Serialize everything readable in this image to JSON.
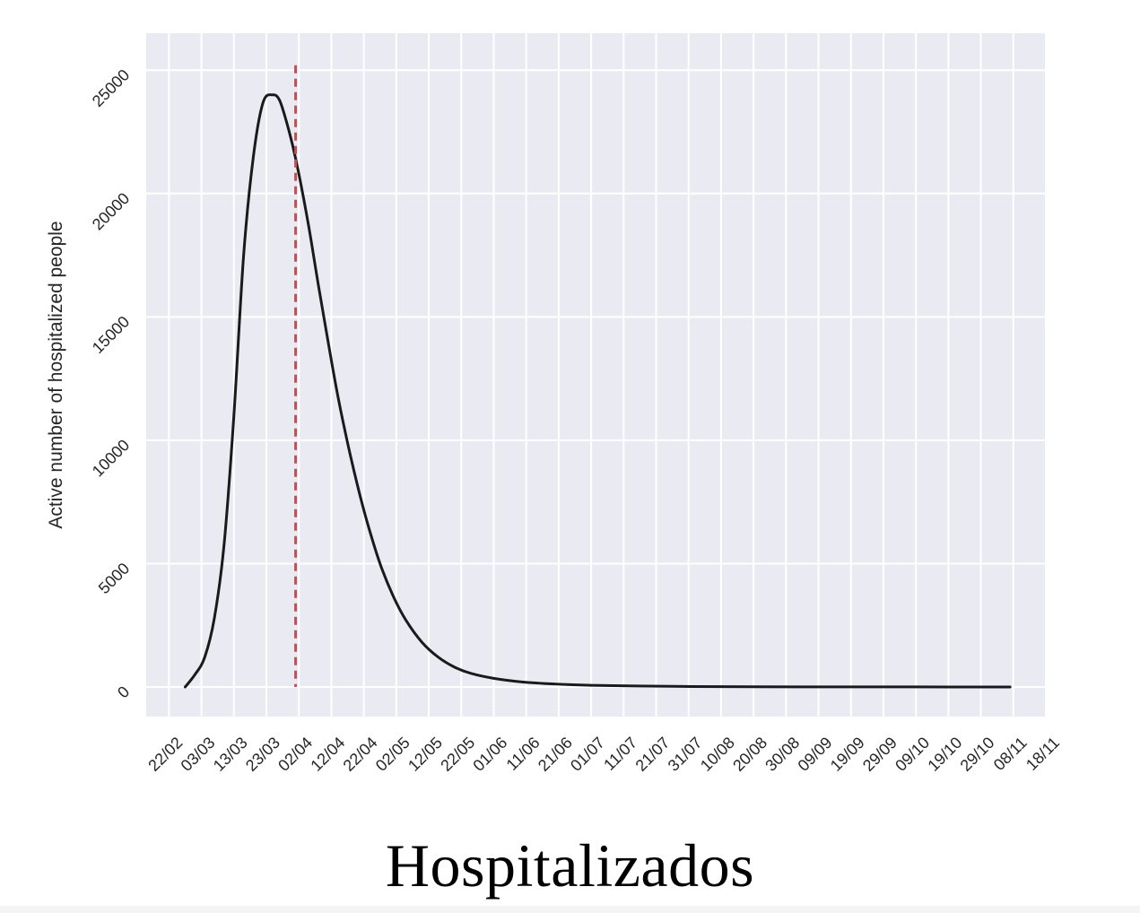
{
  "caption": "Hospitalizados",
  "chart_data": {
    "type": "line",
    "title": "",
    "xlabel": "",
    "ylabel": "Active number of hospitalized people",
    "x_ticks": [
      "22/02",
      "03/03",
      "13/03",
      "23/03",
      "02/04",
      "12/04",
      "22/04",
      "02/05",
      "12/05",
      "22/05",
      "01/06",
      "11/06",
      "21/06",
      "01/07",
      "11/07",
      "21/07",
      "31/07",
      "10/08",
      "20/08",
      "30/08",
      "09/09",
      "19/09",
      "29/09",
      "09/10",
      "19/10",
      "29/10",
      "08/11",
      "18/11"
    ],
    "y_ticks": [
      0,
      5000,
      10000,
      15000,
      20000,
      25000
    ],
    "xlim": [
      "2020-02-15",
      "2020-11-18"
    ],
    "ylim": [
      -1200,
      26500
    ],
    "grid": true,
    "background": "#eaeaf2",
    "grid_color": "#ffffff",
    "series": [
      {
        "color": "#1a1a1a",
        "x": [
          "2020-02-27",
          "2020-03-01",
          "2020-03-04",
          "2020-03-07",
          "2020-03-10",
          "2020-03-13",
          "2020-03-16",
          "2020-03-19",
          "2020-03-22",
          "2020-03-25",
          "2020-03-27",
          "2020-03-29",
          "2020-03-31",
          "2020-04-02",
          "2020-04-05",
          "2020-04-08",
          "2020-04-11",
          "2020-04-14",
          "2020-04-17",
          "2020-04-20",
          "2020-04-23",
          "2020-04-27",
          "2020-05-01",
          "2020-05-05",
          "2020-05-10",
          "2020-05-15",
          "2020-05-20",
          "2020-05-25",
          "2020-06-01",
          "2020-06-10",
          "2020-06-20",
          "2020-07-01",
          "2020-07-15",
          "2020-08-01",
          "2020-08-20",
          "2020-09-10",
          "2020-10-01",
          "2020-10-20",
          "2020-11-07"
        ],
        "y": [
          0,
          500,
          1200,
          2800,
          5800,
          11000,
          17500,
          21500,
          23700,
          24000,
          23800,
          23000,
          22000,
          20800,
          18700,
          16300,
          14000,
          11800,
          9900,
          8200,
          6700,
          5000,
          3700,
          2700,
          1800,
          1200,
          800,
          550,
          350,
          200,
          120,
          70,
          40,
          20,
          10,
          5,
          3,
          1,
          0
        ]
      }
    ],
    "reference_lines": [
      {
        "orientation": "vertical",
        "x": "2020-04-01",
        "color": "#c44e52",
        "style": "dashed"
      }
    ]
  }
}
